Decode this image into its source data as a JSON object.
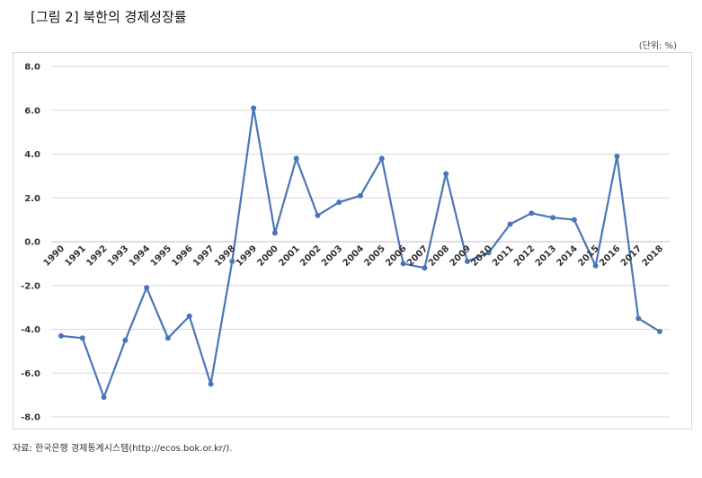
{
  "header": {
    "title": "[그림 2] 북한의 경제성장률",
    "unit": "(단위: %)"
  },
  "footer": {
    "source": "자료: 한국은행 경제통계시스템(http://ecos.bok.or.kr/)."
  },
  "chart_data": {
    "type": "line",
    "title": "",
    "xlabel": "",
    "ylabel": "",
    "ylim": [
      -8,
      8
    ],
    "y_ticks": [
      "8.0",
      "6.0",
      "4.0",
      "2.0",
      "0.0",
      "-2.0",
      "-4.0",
      "-6.0",
      "-8.0"
    ],
    "grid": true,
    "legend": "none",
    "series_color": "#4a76b8",
    "x": [
      "1990",
      "1991",
      "1992",
      "1993",
      "1994",
      "1995",
      "1996",
      "1997",
      "1998",
      "1999",
      "2000",
      "2001",
      "2002",
      "2003",
      "2004",
      "2005",
      "2006",
      "2007",
      "2008",
      "2009",
      "2010",
      "2011",
      "2012",
      "2013",
      "2014",
      "2015",
      "2016",
      "2017",
      "2018"
    ],
    "series": [
      {
        "values": [
          -4.3,
          -4.4,
          -7.1,
          -4.5,
          -2.1,
          -4.4,
          -3.4,
          -6.5,
          -0.9,
          6.1,
          0.4,
          3.8,
          1.2,
          1.8,
          2.1,
          3.8,
          -1.0,
          -1.2,
          3.1,
          -0.9,
          -0.5,
          0.8,
          1.3,
          1.1,
          1.0,
          -1.1,
          3.9,
          -3.5,
          -4.1
        ]
      }
    ]
  }
}
